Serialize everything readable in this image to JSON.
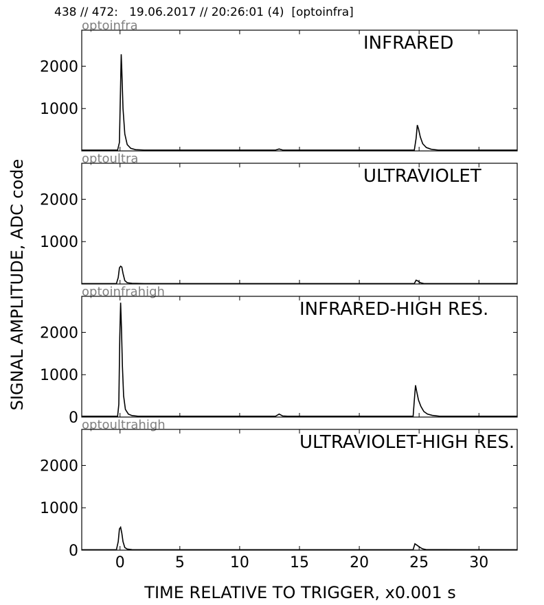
{
  "header": {
    "title": "438 // 472:   19.06.2017 // 20:26:01 (4)  [optoinfra]"
  },
  "chart_data": {
    "type": "line",
    "ylabel": "SIGNAL AMPLITUDE,  ADC code",
    "xlabel": "TIME RELATIVE TO TRIGGER,   x0.001 s",
    "xlim": [
      -3.2,
      33.2
    ],
    "x_ticks": [
      0,
      5,
      10,
      15,
      20,
      25,
      30
    ],
    "x_tick_labels": [
      "0",
      "5",
      "10",
      "15",
      "20",
      "25",
      "30"
    ],
    "line_color": "#000000",
    "tag_color": "#808080",
    "grid": false,
    "panels": [
      {
        "tag": "optoinfra",
        "label": "INFRARED",
        "ylim": [
          0,
          2850
        ],
        "y_ticks": [
          1000,
          2000
        ],
        "y_tick_labels": [
          "1000",
          "2000"
        ],
        "series": [
          {
            "x": [
              -3.2,
              -0.2,
              -0.05,
              0.05,
              0.1,
              0.15,
              0.25,
              0.4,
              0.6,
              0.9,
              1.3,
              2,
              8,
              13,
              13.3,
              13.6,
              14,
              20,
              24.6,
              24.75,
              24.85,
              24.95,
              25.1,
              25.3,
              25.6,
              26,
              26.6,
              33.2
            ],
            "y": [
              20,
              20,
              200,
              1600,
              2280,
              1900,
              1000,
              400,
              150,
              60,
              30,
              20,
              20,
              20,
              45,
              20,
              20,
              20,
              20,
              300,
              610,
              520,
              330,
              170,
              80,
              40,
              20,
              20
            ]
          }
        ]
      },
      {
        "tag": "optoultra",
        "label": "ULTRAVIOLET",
        "ylim": [
          0,
          2850
        ],
        "y_ticks": [
          1000,
          2000
        ],
        "y_tick_labels": [
          "1000",
          "2000"
        ],
        "series": [
          {
            "x": [
              -3.2,
              -0.3,
              -0.15,
              -0.05,
              0.05,
              0.15,
              0.25,
              0.4,
              0.6,
              1,
              2,
              24.6,
              24.75,
              24.9,
              25.1,
              25.4,
              33.2
            ],
            "y": [
              10,
              10,
              150,
              380,
              420,
              400,
              250,
              80,
              30,
              15,
              10,
              10,
              90,
              70,
              30,
              10,
              10
            ]
          }
        ]
      },
      {
        "tag": "optoinfrahigh",
        "label": "INFRARED-HIGH RES.",
        "ylim": [
          0,
          2850
        ],
        "y_ticks": [
          0,
          1000,
          2000
        ],
        "y_tick_labels": [
          "0",
          "1000",
          "2000"
        ],
        "series": [
          {
            "x": [
              -3.2,
              -0.2,
              -0.1,
              -0.02,
              0.05,
              0.12,
              0.2,
              0.3,
              0.45,
              0.7,
              1,
              1.5,
              8,
              13,
              13.3,
              13.6,
              14,
              20,
              24.5,
              24.6,
              24.7,
              24.8,
              24.95,
              25.15,
              25.4,
              25.7,
              26.1,
              26.7,
              33.2
            ],
            "y": [
              20,
              20,
              300,
              1900,
              2700,
              2100,
              1200,
              500,
              180,
              70,
              35,
              20,
              20,
              20,
              70,
              25,
              20,
              20,
              20,
              400,
              750,
              600,
              400,
              250,
              130,
              70,
              40,
              20,
              20
            ]
          }
        ]
      },
      {
        "tag": "optoultrahigh",
        "label": "ULTRAVIOLET-HIGH RES.",
        "ylim": [
          0,
          2850
        ],
        "y_ticks": [
          0,
          1000,
          2000
        ],
        "y_tick_labels": [
          "0",
          "1000",
          "2000"
        ],
        "series": [
          {
            "x": [
              -3.2,
              -0.3,
              -0.15,
              -0.05,
              0.05,
              0.15,
              0.25,
              0.4,
              0.6,
              1,
              2,
              24.5,
              24.65,
              24.8,
              24.95,
              25.1,
              25.3,
              25.6,
              33.2
            ],
            "y": [
              10,
              10,
              200,
              500,
              540,
              400,
              200,
              60,
              25,
              12,
              10,
              10,
              150,
              120,
              90,
              60,
              30,
              12,
              10
            ]
          }
        ]
      }
    ]
  }
}
